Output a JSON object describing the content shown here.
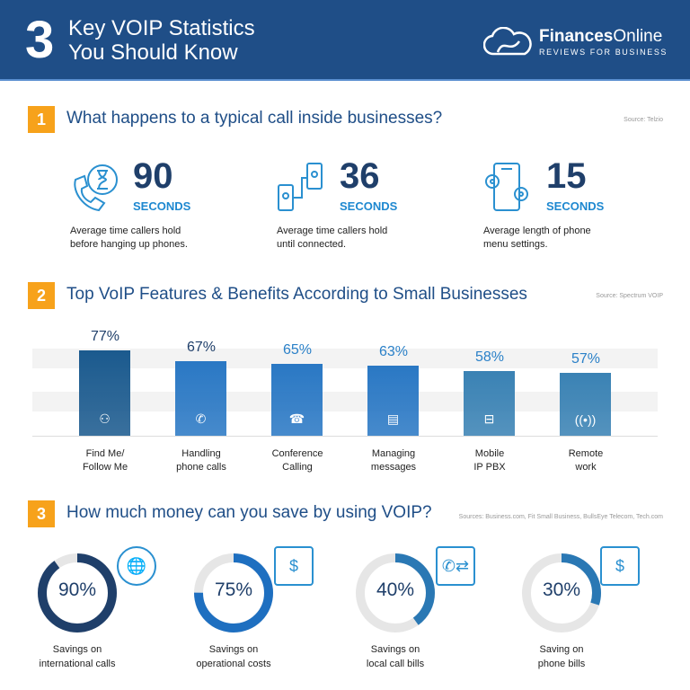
{
  "header": {
    "number": "3",
    "title_line1": "Key VOIP Statistics",
    "title_line2": "You Should Know",
    "brand_bold": "Finances",
    "brand_rest": "Online",
    "tagline": "REVIEWS FOR BUSINESS"
  },
  "section1": {
    "number": "1",
    "title": "What happens to a typical call inside businesses?",
    "source": "Source: Telzio",
    "stats": [
      {
        "value": "90",
        "unit": "SECONDS",
        "desc1": "Average time callers hold",
        "desc2": "before hanging up phones.",
        "icon": "phone-hourglass-icon"
      },
      {
        "value": "36",
        "unit": "SECONDS",
        "desc1": "Average time callers hold",
        "desc2": "until connected.",
        "icon": "phones-connected-icon"
      },
      {
        "value": "15",
        "unit": "SECONDS",
        "desc1": "Average length of phone",
        "desc2": "menu settings.",
        "icon": "phone-settings-icon"
      }
    ]
  },
  "section2": {
    "number": "2",
    "title": "Top VoIP Features & Benefits According to Small Businesses",
    "source": "Source: Spectrum VOIP"
  },
  "section3": {
    "number": "3",
    "title": "How much money can you save by using VOIP?",
    "source": "Sources: Business.com, Fit Small Business, BullsEye Telecom, Tech.com"
  },
  "chart_data": [
    {
      "type": "bar",
      "categories": [
        "Find Me/ Follow Me",
        "Handling phone calls",
        "Conference Calling",
        "Managing messages",
        "Mobile IP PBX",
        "Remote work"
      ],
      "label_lines": [
        [
          "Find Me/",
          "Follow Me"
        ],
        [
          "Handling",
          "phone calls"
        ],
        [
          "Conference",
          "Calling"
        ],
        [
          "Managing",
          "messages"
        ],
        [
          "Mobile",
          "IP PBX"
        ],
        [
          "Remote",
          "work"
        ]
      ],
      "values": [
        77,
        67,
        65,
        63,
        58,
        57
      ],
      "value_labels": [
        "77%",
        "67%",
        "65%",
        "63%",
        "58%",
        "57%"
      ],
      "icons": [
        "people-network-icon",
        "phone-ringing-icon",
        "conference-icon",
        "chat-icon",
        "router-icon",
        "antenna-icon"
      ],
      "colors": [
        "#1b5a8e",
        "#2a78c4",
        "#2a78c4",
        "#2a78c4",
        "#3a82b4",
        "#3a82b4"
      ],
      "value_colors": [
        "#1f3f6a",
        "#1f3f6a",
        "#2a80c8",
        "#2a80c8",
        "#2a80c8",
        "#2a80c8"
      ],
      "grid": true,
      "unit": "%"
    },
    {
      "type": "pie",
      "style": "donut",
      "values": [
        90,
        75,
        40,
        30
      ],
      "value_labels": [
        "90%",
        "75%",
        "40%",
        "30%"
      ],
      "label_lines": [
        [
          "Savings on",
          "international calls"
        ],
        [
          "Savings on",
          "operational costs"
        ],
        [
          "Savings on",
          "local call bills"
        ],
        [
          "Saving on",
          "phone bills"
        ]
      ],
      "colors": [
        "#1f3f6a",
        "#1e6fc0",
        "#2a78b4",
        "#2a78b4"
      ],
      "track_color": "#e6e6e6",
      "icons": [
        "globe-icon",
        "money-calculator-icon",
        "phone-arrows-icon",
        "bill-icon"
      ]
    }
  ]
}
